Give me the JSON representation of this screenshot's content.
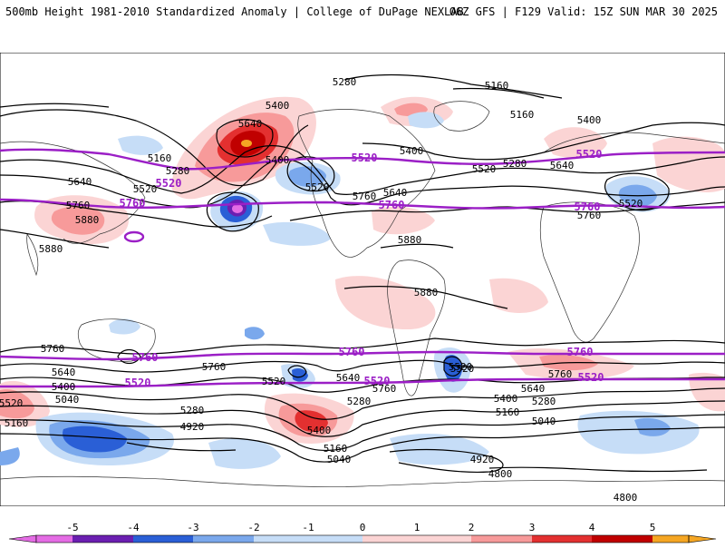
{
  "header": {
    "left_title": "500mb Height 1981-2010 Standardized Anomaly | College of DuPage NEXLAB",
    "right_title": "06Z GFS | F129 Valid: 15Z SUN MAR 30 2025"
  },
  "colors": {
    "pos_1": "#fbd4d4",
    "pos_2": "#f79a9a",
    "pos_3": "#e33030",
    "pos_4": "#c00000",
    "pos_5": "#f5a623",
    "neg_1": "#c6ddf7",
    "neg_2": "#7aa8ec",
    "neg_3": "#2a5fd6",
    "neg_4": "#6b1fb1",
    "neg_5": "#e46ce4",
    "contour": "#000000",
    "highlight_contour": "#9b1fc6"
  },
  "contour_labels": [
    {
      "text": "5280"
    },
    {
      "text": "5160"
    },
    {
      "text": "5160"
    },
    {
      "text": "5400"
    },
    {
      "text": "5400"
    },
    {
      "text": "5640"
    },
    {
      "text": "5400"
    },
    {
      "text": "5400"
    },
    {
      "text": "5160"
    },
    {
      "text": "5280"
    },
    {
      "text": "5640"
    },
    {
      "text": "5520"
    },
    {
      "text": "5520"
    },
    {
      "text": "5520"
    },
    {
      "text": "5280"
    },
    {
      "text": "5640"
    },
    {
      "text": "5760"
    },
    {
      "text": "5880"
    },
    {
      "text": "5880"
    },
    {
      "text": "5760"
    },
    {
      "text": "5640"
    },
    {
      "text": "5520"
    },
    {
      "text": "5760"
    },
    {
      "text": "5880"
    },
    {
      "text": "5880"
    },
    {
      "text": "5760"
    },
    {
      "text": "5760"
    },
    {
      "text": "5640"
    },
    {
      "text": "5520"
    },
    {
      "text": "5400"
    },
    {
      "text": "5280"
    },
    {
      "text": "5040"
    },
    {
      "text": "5160"
    },
    {
      "text": "5520"
    },
    {
      "text": "5640"
    },
    {
      "text": "5280"
    },
    {
      "text": "5400"
    },
    {
      "text": "5160"
    },
    {
      "text": "5040"
    },
    {
      "text": "4920"
    },
    {
      "text": "5520"
    },
    {
      "text": "5760"
    },
    {
      "text": "5520"
    },
    {
      "text": "5400"
    },
    {
      "text": "5280"
    },
    {
      "text": "5160"
    },
    {
      "text": "5040"
    },
    {
      "text": "5760"
    },
    {
      "text": "5640"
    },
    {
      "text": "4920"
    },
    {
      "text": "4800"
    },
    {
      "text": "4800"
    }
  ],
  "highlight_labels": [
    {
      "text": "5520"
    },
    {
      "text": "5520"
    },
    {
      "text": "5520"
    },
    {
      "text": "5760"
    },
    {
      "text": "5760"
    },
    {
      "text": "5760"
    },
    {
      "text": "5760"
    },
    {
      "text": "5760"
    },
    {
      "text": "5760"
    },
    {
      "text": "5520"
    },
    {
      "text": "5520"
    },
    {
      "text": "5520"
    }
  ],
  "colorbar": {
    "ticks": [
      "-5",
      "-4",
      "-3",
      "-2",
      "-1",
      "0",
      "1",
      "2",
      "3",
      "4",
      "5"
    ]
  }
}
